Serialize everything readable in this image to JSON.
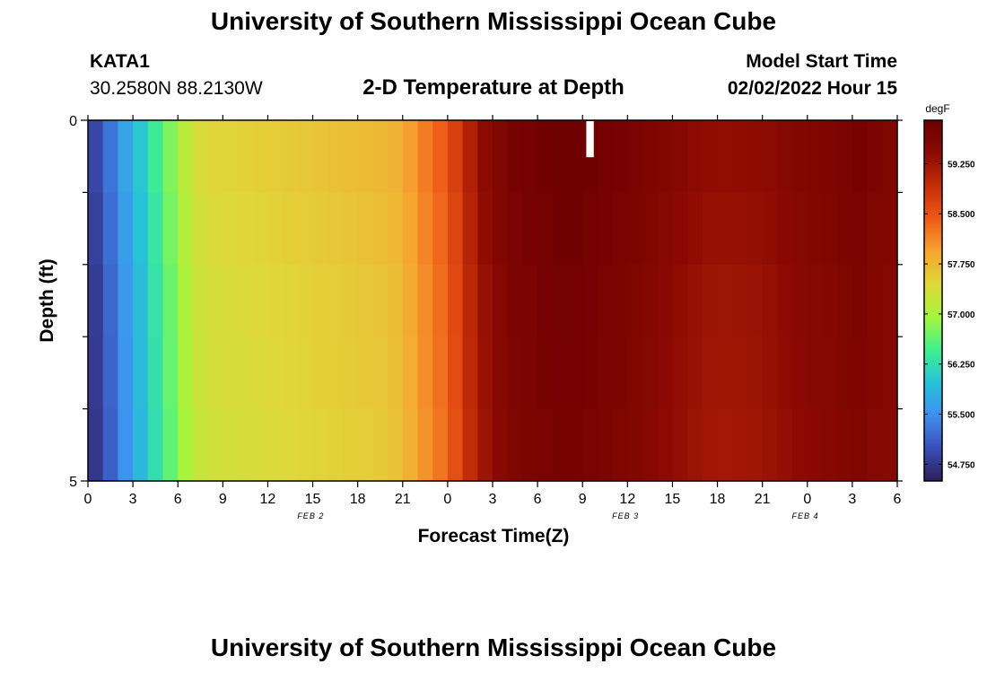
{
  "header": {
    "title": "University of Southern Mississippi Ocean Cube",
    "station_id": "KATA1",
    "coordinates": "30.2580N  88.2130W",
    "subtitle": "2-D Temperature at Depth",
    "model_start_label": "Model Start Time",
    "model_start_value": "02/02/2022 Hour 15"
  },
  "footer": {
    "title": "University of Southern Mississippi Ocean Cube"
  },
  "colors": {
    "ramp": [
      "#2d1e5a",
      "#3a4fb8",
      "#3f8ff0",
      "#27c2d8",
      "#3ff08f",
      "#a6f53c",
      "#dfd83a",
      "#f7a431",
      "#ef5a17",
      "#c42d08",
      "#8c0a02",
      "#6e0000"
    ],
    "missing_marker": "#ffffff"
  },
  "chart_data": {
    "type": "heatmap",
    "xlabel": "Forecast Time(Z)",
    "ylabel": "Depth (ft)",
    "ylim": [
      0,
      5
    ],
    "y_ticks": [
      "0",
      "5"
    ],
    "x_tick_labels": [
      "0",
      "3",
      "6",
      "9",
      "12",
      "15",
      "18",
      "21",
      "0",
      "3",
      "6",
      "9",
      "12",
      "15",
      "18",
      "21",
      "0",
      "3",
      "6"
    ],
    "date_labels": [
      {
        "label": "FEB 2",
        "hour_index": 18
      },
      {
        "label": "FEB 3",
        "hour_index": 60
      },
      {
        "label": "FEB 4",
        "hour_index": 84
      }
    ],
    "x_hours_total": 54,
    "depth_layers": 5,
    "colorbar": {
      "unit": "degF",
      "min": 54.5,
      "max": 59.9,
      "ticks": [
        "54.750",
        "55.500",
        "56.250",
        "57.000",
        "57.750",
        "58.500",
        "59.250"
      ]
    },
    "missing": {
      "hour": 33,
      "layer": 0
    },
    "profile_hours": [
      0,
      1,
      2,
      3,
      4,
      5,
      6,
      7,
      8,
      10,
      12,
      14,
      16,
      18,
      20,
      21,
      22,
      24,
      25,
      26,
      27,
      28,
      29,
      30,
      31,
      32,
      33,
      35,
      38,
      40,
      42,
      45,
      48,
      50,
      51,
      52,
      54
    ],
    "profile_temps": [
      54.75,
      55.05,
      55.5,
      55.85,
      56.2,
      56.6,
      56.95,
      57.3,
      57.45,
      57.5,
      57.55,
      57.6,
      57.65,
      57.7,
      57.75,
      57.85,
      58.1,
      58.5,
      58.9,
      59.3,
      59.55,
      59.7,
      59.8,
      59.85,
      59.9,
      59.9,
      59.9,
      59.8,
      59.6,
      59.45,
      59.35,
      59.4,
      59.6,
      59.65,
      59.8,
      59.7,
      59.6
    ],
    "depth_offsets": [
      0.0,
      -0.05,
      -0.1,
      -0.12,
      -0.15
    ]
  }
}
